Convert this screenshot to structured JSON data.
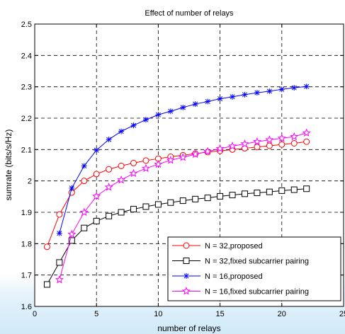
{
  "chart_data": {
    "type": "line",
    "title": "Effect of number of relays",
    "xlabel": "number of relays",
    "ylabel": "sumrate (bits/s/Hz)",
    "xlim": [
      0,
      25
    ],
    "ylim": [
      1.6,
      2.5
    ],
    "xticks": [
      0,
      5,
      10,
      15,
      20,
      25
    ],
    "yticks": [
      1.6,
      1.7,
      1.8,
      1.9,
      2,
      2.1,
      2.2,
      2.3,
      2.4,
      2.5
    ],
    "xtick_labels": [
      "0",
      "5",
      "10",
      "15",
      "20",
      "25"
    ],
    "ytick_labels": [
      "1.6",
      "1.7",
      "1.8",
      "1.9",
      "2",
      "2.1",
      "2.2",
      "2.3",
      "2.4",
      "2.5"
    ],
    "grid": true,
    "grid_style": "dashed",
    "legend_position": "bottom-right",
    "series": [
      {
        "name": "N = 32,proposed",
        "color": "#ff0000",
        "marker": "circle",
        "x": [
          1,
          2,
          3,
          4,
          5,
          6,
          7,
          8,
          9,
          10,
          11,
          12,
          13,
          14,
          15,
          16,
          17,
          18,
          19,
          20,
          21,
          22
        ],
        "y": [
          1.79,
          1.893,
          1.963,
          2.0,
          2.022,
          2.037,
          2.048,
          2.057,
          2.065,
          2.071,
          2.077,
          2.082,
          2.087,
          2.092,
          2.096,
          2.1,
          2.104,
          2.108,
          2.112,
          2.116,
          2.12,
          2.125
        ]
      },
      {
        "name": "N = 32,fixed subcarrier pairing",
        "color": "#000000",
        "marker": "square",
        "x": [
          1,
          2,
          3,
          4,
          5,
          6,
          7,
          8,
          9,
          10,
          11,
          12,
          13,
          14,
          15,
          16,
          17,
          18,
          19,
          20,
          21,
          22
        ],
        "y": [
          1.67,
          1.74,
          1.81,
          1.85,
          1.872,
          1.888,
          1.9,
          1.91,
          1.918,
          1.925,
          1.931,
          1.937,
          1.942,
          1.946,
          1.951,
          1.955,
          1.959,
          1.962,
          1.965,
          1.969,
          1.972,
          1.975
        ]
      },
      {
        "name": "N = 16,proposed",
        "color": "#0000ff",
        "marker": "star",
        "x": [
          2,
          3,
          4,
          5,
          6,
          7,
          8,
          9,
          10,
          11,
          12,
          13,
          14,
          15,
          16,
          17,
          18,
          19,
          20,
          21,
          22
        ],
        "y": [
          1.833,
          1.977,
          2.048,
          2.098,
          2.132,
          2.158,
          2.177,
          2.195,
          2.211,
          2.222,
          2.234,
          2.245,
          2.253,
          2.262,
          2.268,
          2.275,
          2.281,
          2.286,
          2.292,
          2.297,
          2.301
        ]
      },
      {
        "name": "N = 16,fixed subcarrier pairing",
        "color": "#ff00ff",
        "marker": "pentagram",
        "x": [
          2,
          3,
          4,
          5,
          6,
          7,
          8,
          9,
          10,
          11,
          12,
          13,
          14,
          15,
          16,
          17,
          18,
          19,
          20,
          21,
          22
        ],
        "y": [
          1.685,
          1.83,
          1.9,
          1.951,
          1.98,
          2.003,
          2.024,
          2.04,
          2.053,
          2.066,
          2.075,
          2.085,
          2.094,
          2.103,
          2.111,
          2.118,
          2.125,
          2.131,
          2.136,
          2.141,
          2.153
        ]
      }
    ]
  }
}
